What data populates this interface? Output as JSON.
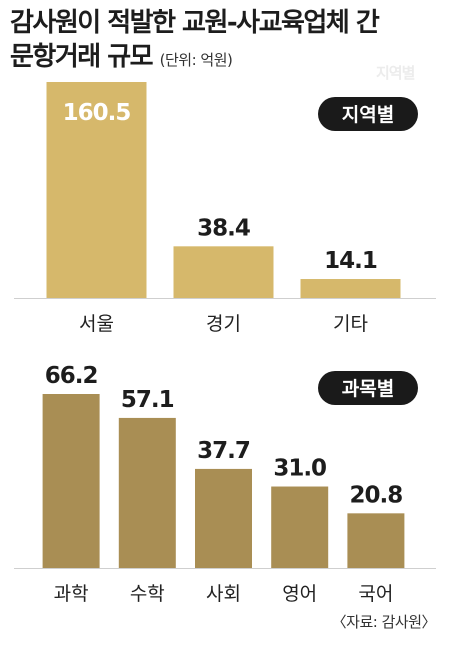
{
  "header": {
    "title_line1": "감사원이 적발한 교원-사교육업체 간",
    "title_line2": "문항거래 규모",
    "unit": "(단위: 억원)",
    "watermark": "지역별"
  },
  "source": "〈자료: 감사원〉",
  "colors": {
    "region_bar": "#d6b86b",
    "subject_bar": "#a98e54",
    "badge_bg": "#1a1a1a",
    "badge_text": "#ffffff"
  },
  "chart_data": [
    {
      "type": "bar",
      "badge": "지역별",
      "categories": [
        "서울",
        "경기",
        "기타"
      ],
      "values": [
        160.5,
        38.4,
        14.1
      ],
      "value_labels": [
        "160.5",
        "38.4",
        "14.1"
      ],
      "ylim": [
        0,
        160.5
      ]
    },
    {
      "type": "bar",
      "badge": "과목별",
      "categories": [
        "과학",
        "수학",
        "사회",
        "영어",
        "국어"
      ],
      "values": [
        66.2,
        57.1,
        37.7,
        31.0,
        20.8
      ],
      "value_labels": [
        "66.2",
        "57.1",
        "37.7",
        "31.0",
        "20.8"
      ],
      "ylim": [
        0,
        66.2
      ]
    }
  ]
}
